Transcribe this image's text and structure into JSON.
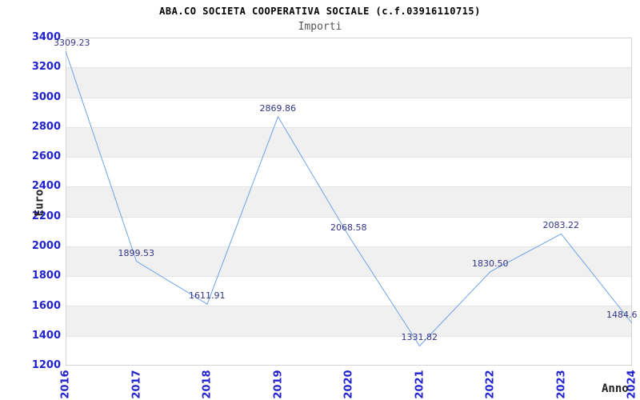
{
  "title": "ABA.CO SOCIETA COOPERATIVA SOCIALE (c.f.03916110715)",
  "subtitle": "Importi",
  "chart_data": {
    "type": "line",
    "title": "ABA.CO SOCIETA COOPERATIVA SOCIALE (c.f.03916110715)",
    "subtitle": "Importi",
    "x": [
      2016,
      2017,
      2018,
      2019,
      2020,
      2021,
      2022,
      2023,
      2024
    ],
    "series": [
      {
        "name": "Importi",
        "values": [
          3309.23,
          1899.53,
          1611.91,
          2869.86,
          2068.58,
          1331.82,
          1830.5,
          2083.22,
          1484.6
        ]
      }
    ],
    "point_labels": [
      "3309.23",
      "1899.53",
      "1611.91",
      "2869.86",
      "2068.58",
      "1331.82",
      "1830.50",
      "2083.22",
      "1484.6"
    ],
    "xlabel": "Anno",
    "ylabel": "Euro",
    "ylim": [
      1200,
      3400
    ],
    "ytick_step": 200,
    "grid": "alternating-horizontal-bands",
    "legend_position": "none",
    "colors": {
      "line": "#6ea3e8",
      "tick_label": "#2222cc",
      "point_label": "#333388",
      "band_gray": "#f0f0f0",
      "plot_border": "#d4d4d4",
      "title": "#000000",
      "subtitle": "#555555"
    }
  }
}
